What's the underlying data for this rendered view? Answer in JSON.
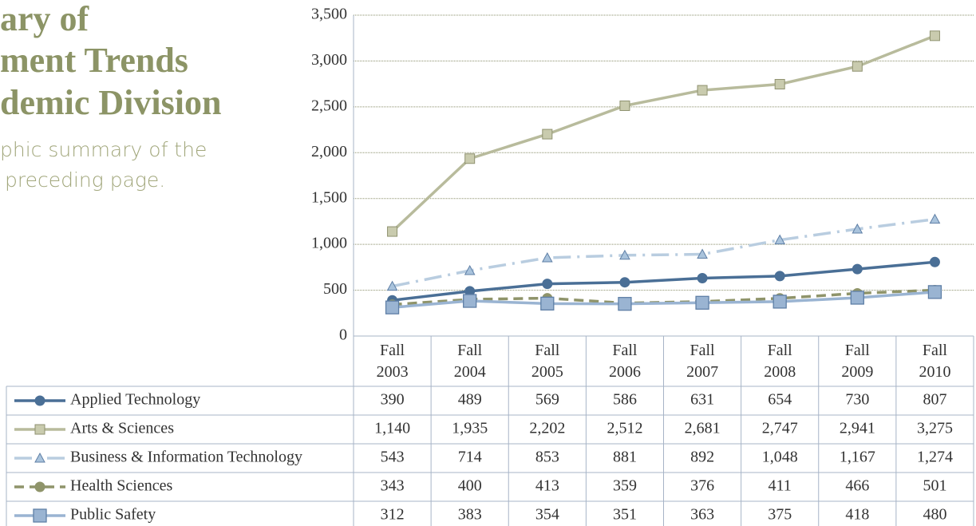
{
  "title_lines": [
    "ary of",
    "ment Trends",
    "demic Division"
  ],
  "subtitle_lines": [
    "phic summary of the",
    "preceding page."
  ],
  "chart_data": {
    "type": "line",
    "categories": [
      "Fall 2003",
      "Fall 2004",
      "Fall 2005",
      "Fall 2006",
      "Fall 2007",
      "Fall 2008",
      "Fall 2009",
      "Fall 2010"
    ],
    "ylim": [
      0,
      3500
    ],
    "yticks": [
      0,
      500,
      {
        "value": 1000,
        "label": "1,000"
      },
      {
        "value": 1500,
        "label": "1,500"
      },
      {
        "value": 2000,
        "label": "2,000"
      },
      {
        "value": 2500,
        "label": "2,500"
      },
      {
        "value": 3000,
        "label": "3,000"
      },
      {
        "value": 3500,
        "label": "3,500"
      }
    ],
    "grid": true,
    "series": [
      {
        "name": "Applied Technology",
        "color": "#4a6f96",
        "marker": "circle",
        "dash": "solid",
        "values": [
          390,
          489,
          569,
          586,
          631,
          654,
          730,
          807
        ]
      },
      {
        "name": "Arts & Sciences",
        "color": "#b8bb9c",
        "marker": "square",
        "dash": "solid",
        "values": [
          1140,
          1935,
          2202,
          2512,
          2681,
          2747,
          2941,
          3275
        ],
        "value_labels": [
          "1,140",
          "1,935",
          "2,202",
          "2,512",
          "2,681",
          "2,747",
          "2,941",
          "3,275"
        ]
      },
      {
        "name": "Business & Information Technology",
        "color": "#b9cde0",
        "marker": "triangle",
        "dash": "dashdot",
        "values": [
          543,
          714,
          853,
          881,
          892,
          1048,
          1167,
          1274
        ],
        "value_labels": [
          "543",
          "714",
          "853",
          "881",
          "892",
          "1,048",
          "1,167",
          "1,274"
        ]
      },
      {
        "name": "Health Sciences",
        "color": "#8f946a",
        "marker": "circle",
        "dash": "dash",
        "values": [
          343,
          400,
          413,
          359,
          376,
          411,
          466,
          501
        ]
      },
      {
        "name": "Public Safety",
        "color": "#9ab4d2",
        "marker": "bigsquare",
        "dash": "solid",
        "values": [
          312,
          383,
          354,
          351,
          363,
          375,
          418,
          480
        ]
      }
    ]
  }
}
